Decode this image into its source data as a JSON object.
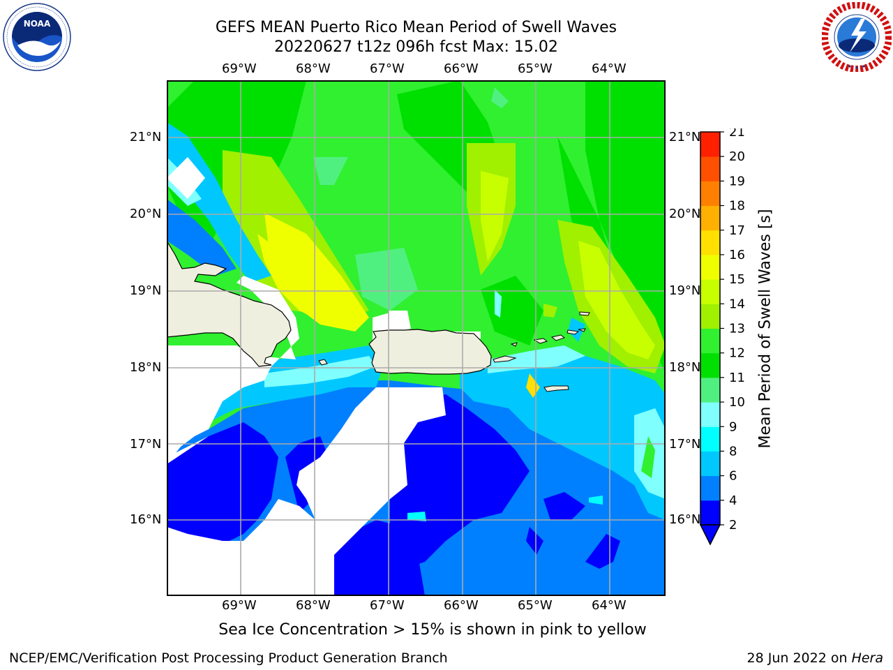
{
  "header": {
    "title_line1": "GEFS MEAN Puerto Rico Mean Period of Swell Waves",
    "title_line2": "20220627 t12z 096h fcst   Max: 15.02"
  },
  "logos": {
    "left": "NOAA",
    "left_ring_text": "NATIONAL OCEANIC AND ATMOSPHERIC ADMINISTRATION · U.S. DEPARTMENT OF COMMERCE",
    "right_ring_text": "NATIONAL WEATHER SERVICE"
  },
  "map": {
    "lon_labels": [
      "69°W",
      "68°W",
      "67°W",
      "66°W",
      "65°W",
      "64°W"
    ],
    "lat_labels": [
      "21°N",
      "20°N",
      "19°N",
      "18°N",
      "17°N",
      "16°N"
    ]
  },
  "colorbar": {
    "label": "Mean Period of Swell Waves [s]",
    "ticks": [
      "2",
      "4",
      "6",
      "8",
      "9",
      "10",
      "11",
      "12",
      "13",
      "14",
      "15",
      "16",
      "17",
      "18",
      "19",
      "20",
      "21"
    ],
    "colors": [
      "#0000ff",
      "#0080ff",
      "#00c8ff",
      "#00ffff",
      "#80ffff",
      "#50f080",
      "#00e000",
      "#30f030",
      "#a0f000",
      "#c8ff00",
      "#f0ff00",
      "#ffe000",
      "#ffb000",
      "#ff8000",
      "#ff5000",
      "#ff2000"
    ],
    "extend_color": "#0000ff"
  },
  "note": "Sea Ice Concentration > 15% is shown in pink to yellow",
  "footer": {
    "left": "NCEP/EMC/Verification Post Processing Product Generation Branch",
    "right_date": "28 Jun 2022 on ",
    "right_host": "Hera"
  }
}
